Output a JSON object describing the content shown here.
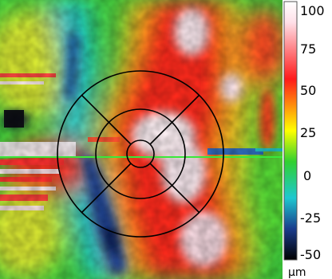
{
  "map": {
    "grid": "ETDRS",
    "colors": {
      "grid_line": "#000000",
      "scan_line": "#39e83a"
    }
  },
  "colorbar": {
    "ticks": [
      "100",
      "75",
      "50",
      "25",
      "0",
      "-25",
      "-50"
    ],
    "unit": "μm",
    "stops": [
      "#ffffff",
      "#ff1a1a",
      "#ffff00",
      "#20d020",
      "#1ec8d0",
      "#1a3c8c",
      "#000000"
    ]
  }
}
